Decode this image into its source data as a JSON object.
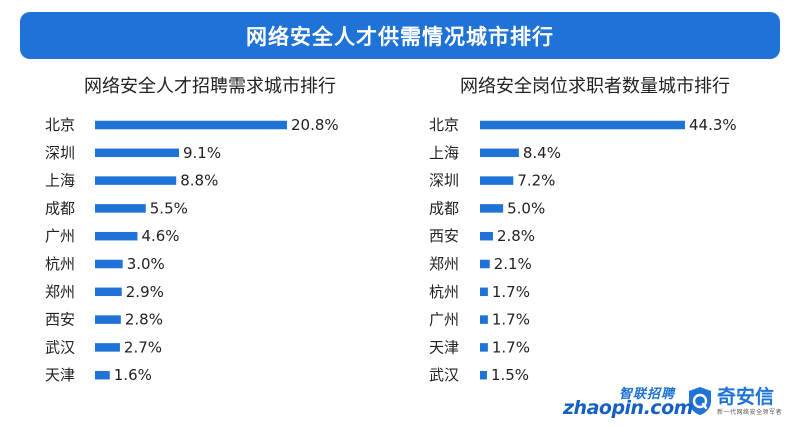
{
  "header": {
    "title": "网络安全人才供需情况城市排行"
  },
  "chart_data": [
    {
      "type": "bar",
      "orientation": "horizontal",
      "title": "网络安全人才招聘需求城市排行",
      "categories": [
        "北京",
        "深圳",
        "上海",
        "成都",
        "广州",
        "杭州",
        "郑州",
        "西安",
        "武汉",
        "天津"
      ],
      "values": [
        20.8,
        9.1,
        8.8,
        5.5,
        4.6,
        3.0,
        2.9,
        2.8,
        2.7,
        1.6
      ],
      "value_labels": [
        "20.8%",
        "9.1%",
        "8.8%",
        "5.5%",
        "4.6%",
        "3.0%",
        "2.9%",
        "2.8%",
        "2.7%",
        "1.6%"
      ],
      "bar_color": "#1f72d6",
      "grid": false
    },
    {
      "type": "bar",
      "orientation": "horizontal",
      "title": "网络安全岗位求职者数量城市排行",
      "categories": [
        "北京",
        "上海",
        "深圳",
        "成都",
        "西安",
        "郑州",
        "杭州",
        "广州",
        "天津",
        "武汉"
      ],
      "values": [
        44.3,
        8.4,
        7.2,
        5.0,
        2.8,
        2.1,
        1.7,
        1.7,
        1.7,
        1.5
      ],
      "value_labels": [
        "44.3%",
        "8.4%",
        "7.2%",
        "5.0%",
        "2.8%",
        "2.1%",
        "1.7%",
        "1.7%",
        "1.7%",
        "1.5%"
      ],
      "bar_color": "#1f72d6",
      "grid": false
    }
  ],
  "logos": {
    "zhaopin_cn": "智联招聘",
    "zhaopin_en": "zhaopin.com",
    "qianxin_name": "奇安信",
    "qianxin_tagline": "新一代网络安全领军者"
  },
  "colors": {
    "banner": "#1f72d6",
    "bar": "#1f72d6",
    "text": "#222222"
  }
}
